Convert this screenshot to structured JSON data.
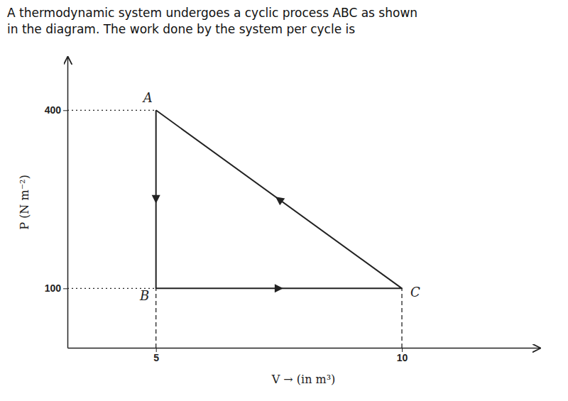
{
  "chart_data": {
    "type": "line",
    "title": "A thermodynamic system undergoes a cyclic process ABC as shown",
    "subtitle": "in the diagram. The work done by the system per cycle is",
    "x_label": "V → (in m³)",
    "y_label": "P (N m⁻²)",
    "x": [
      5,
      5,
      10,
      5
    ],
    "values": [
      400,
      100,
      100,
      400
    ],
    "color": "#222222",
    "xlim": [
      3.2,
      12.8
    ],
    "ylim": [
      0,
      490
    ],
    "xticks": [
      5,
      10
    ],
    "yticks": [
      100,
      400
    ],
    "grid": false,
    "annotations": [
      {
        "text": "A",
        "x": 5,
        "y": 400
      },
      {
        "text": "B",
        "x": 5,
        "y": 100
      },
      {
        "text": "C",
        "x": 10,
        "y": 100
      }
    ]
  }
}
